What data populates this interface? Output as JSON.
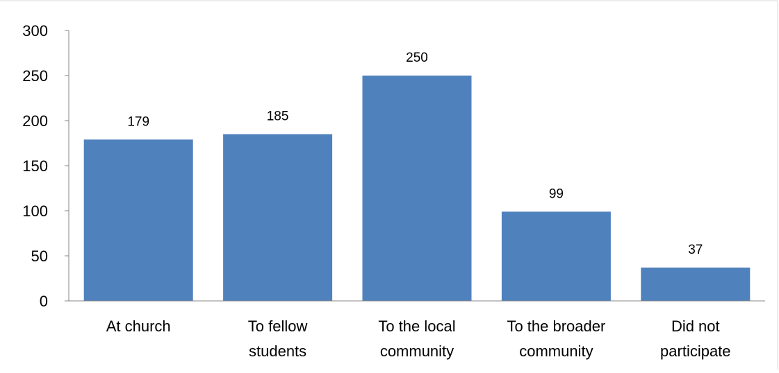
{
  "chart_data": {
    "type": "bar",
    "title": "",
    "xlabel": "",
    "ylabel": "",
    "categories": [
      [
        "At church"
      ],
      [
        "To fellow",
        "students"
      ],
      [
        "To the local",
        "community"
      ],
      [
        "To the broader",
        "community"
      ],
      [
        "Did not",
        "participate"
      ]
    ],
    "values": [
      179,
      185,
      250,
      99,
      37
    ],
    "ylim": [
      0,
      300
    ],
    "yticks": [
      0,
      50,
      100,
      150,
      200,
      250,
      300
    ],
    "grid": false,
    "legend": "none",
    "colors": {
      "bar": "#4f81bd",
      "axis": "#868686",
      "border": "#d9d9d9"
    }
  }
}
